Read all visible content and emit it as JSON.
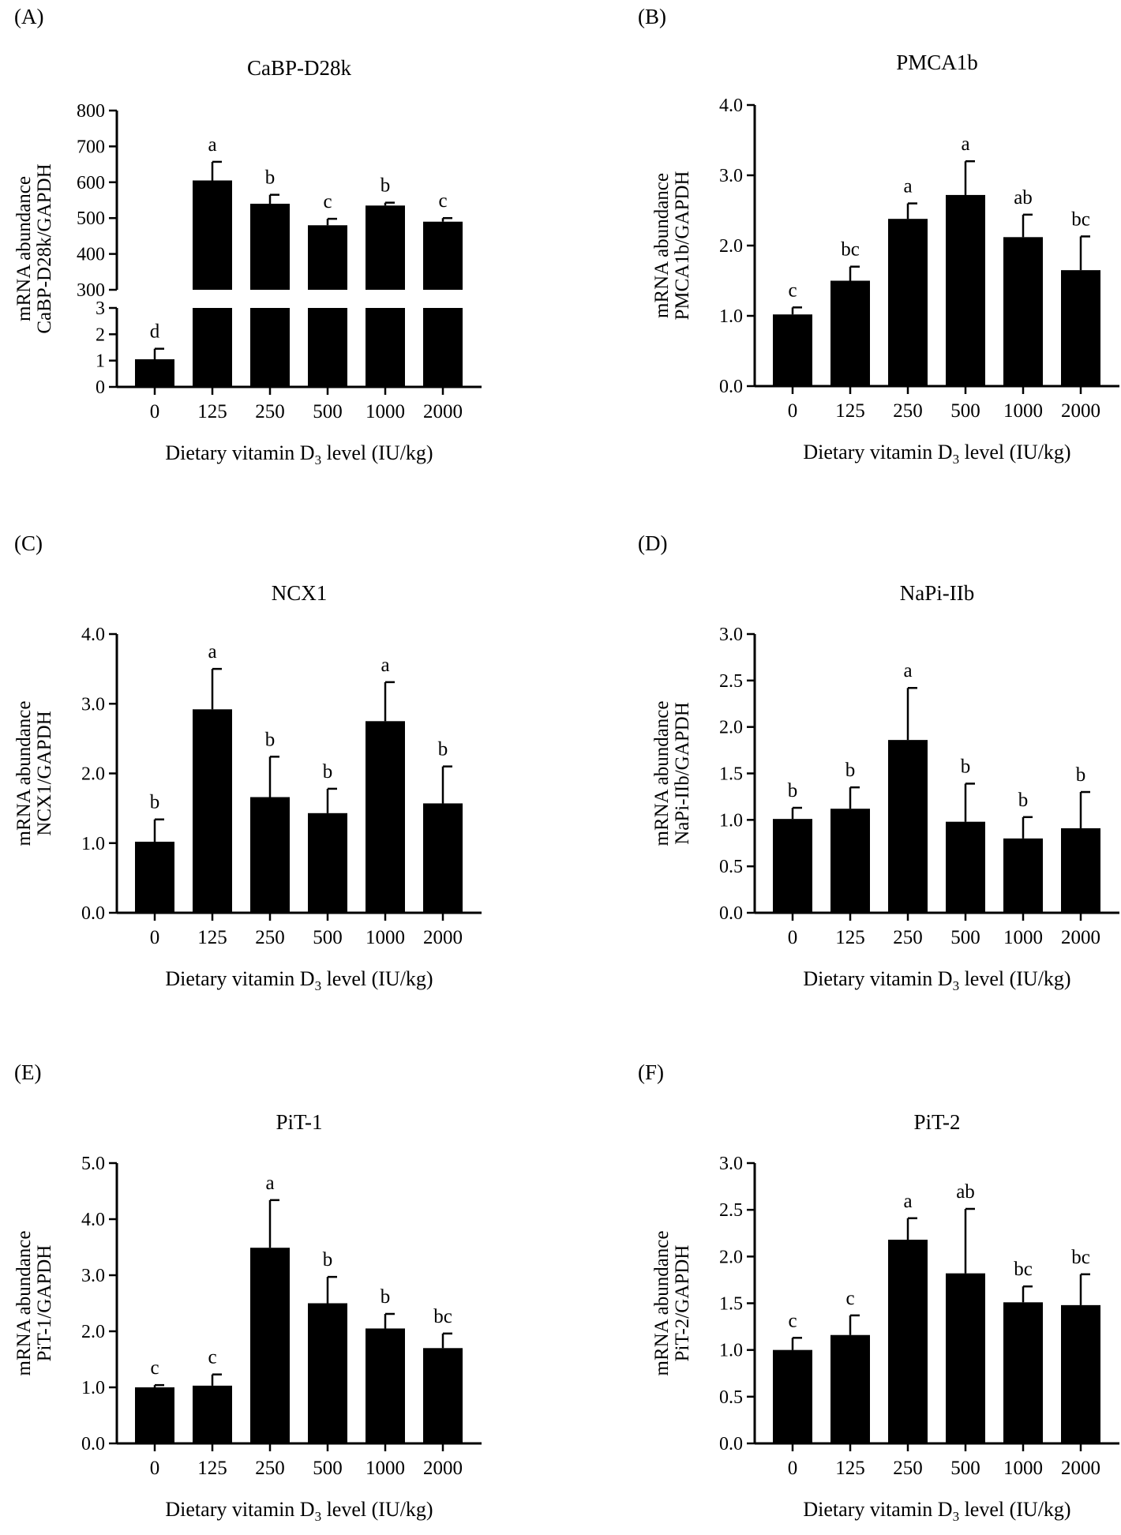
{
  "figure": {
    "categories": [
      "0",
      "125",
      "250",
      "500",
      "1000",
      "2000"
    ],
    "xlabel_pre": "Dietary vitamin D",
    "xlabel_sub": "3",
    "xlabel_post": " level (IU/kg)",
    "bar_color": "#000000"
  },
  "chart_data": [
    {
      "type": "bar",
      "panel_label": "(A)",
      "title": "CaBP-D28k",
      "ylabel_line1": "mRNA abundance",
      "ylabel_line2": "CaBP-D28k/GAPDH",
      "categories": [
        "0",
        "125",
        "250",
        "500",
        "1000",
        "2000"
      ],
      "values": [
        1.05,
        605,
        540,
        480,
        535,
        490
      ],
      "errors": [
        0.4,
        52,
        25,
        18,
        8,
        10
      ],
      "letters": [
        "d",
        "a",
        "b",
        "c",
        "b",
        "c"
      ],
      "broken_axis": true,
      "lower_ylim": [
        0,
        3
      ],
      "lower_ticks": [
        "0",
        "1",
        "2",
        "3"
      ],
      "upper_ylim": [
        300,
        800
      ],
      "upper_ticks": [
        "300",
        "400",
        "500",
        "600",
        "700",
        "800"
      ]
    },
    {
      "type": "bar",
      "panel_label": "(B)",
      "title": "PMCA1b",
      "ylabel_line1": "mRNA abundance",
      "ylabel_line2": "PMCA1b/GAPDH",
      "categories": [
        "0",
        "125",
        "250",
        "500",
        "1000",
        "2000"
      ],
      "values": [
        1.02,
        1.5,
        2.38,
        2.72,
        2.12,
        1.65
      ],
      "errors": [
        0.1,
        0.2,
        0.22,
        0.48,
        0.32,
        0.48
      ],
      "letters": [
        "c",
        "bc",
        "a",
        "a",
        "ab",
        "bc"
      ],
      "ylim": [
        0,
        4
      ],
      "ticks": [
        "0.0",
        "1.0",
        "2.0",
        "3.0",
        "4.0"
      ]
    },
    {
      "type": "bar",
      "panel_label": "(C)",
      "title": "NCX1",
      "ylabel_line1": "mRNA abundance",
      "ylabel_line2": "NCX1/GAPDH",
      "categories": [
        "0",
        "125",
        "250",
        "500",
        "1000",
        "2000"
      ],
      "values": [
        1.02,
        2.92,
        1.66,
        1.43,
        2.75,
        1.57
      ],
      "errors": [
        0.32,
        0.58,
        0.58,
        0.35,
        0.56,
        0.53
      ],
      "letters": [
        "b",
        "a",
        "b",
        "b",
        "a",
        "b"
      ],
      "ylim": [
        0,
        4
      ],
      "ticks": [
        "0.0",
        "1.0",
        "2.0",
        "3.0",
        "4.0"
      ]
    },
    {
      "type": "bar",
      "panel_label": "(D)",
      "title": "NaPi-IIb",
      "ylabel_line1": "mRNA abundance",
      "ylabel_line2": "NaPi-IIb/GAPDH",
      "categories": [
        "0",
        "125",
        "250",
        "500",
        "1000",
        "2000"
      ],
      "values": [
        1.01,
        1.12,
        1.86,
        0.98,
        0.8,
        0.91
      ],
      "errors": [
        0.12,
        0.23,
        0.56,
        0.41,
        0.23,
        0.39
      ],
      "letters": [
        "b",
        "b",
        "a",
        "b",
        "b",
        "b"
      ],
      "ylim": [
        0,
        3
      ],
      "ticks": [
        "0.0",
        "0.5",
        "1.0",
        "1.5",
        "2.0",
        "2.5",
        "3.0"
      ]
    },
    {
      "type": "bar",
      "panel_label": "(E)",
      "title": "PiT-1",
      "ylabel_line1": "mRNA abundance",
      "ylabel_line2": "PiT-1/GAPDH",
      "categories": [
        "0",
        "125",
        "250",
        "500",
        "1000",
        "2000"
      ],
      "values": [
        1.0,
        1.03,
        3.49,
        2.5,
        2.05,
        1.7
      ],
      "errors": [
        0.04,
        0.2,
        0.85,
        0.47,
        0.26,
        0.26
      ],
      "letters": [
        "c",
        "c",
        "a",
        "b",
        "b",
        "bc"
      ],
      "ylim": [
        0,
        5
      ],
      "ticks": [
        "0.0",
        "1.0",
        "2.0",
        "3.0",
        "4.0",
        "5.0"
      ]
    },
    {
      "type": "bar",
      "panel_label": "(F)",
      "title": "PiT-2",
      "ylabel_line1": "mRNA abundance",
      "ylabel_line2": "PiT-2/GAPDH",
      "categories": [
        "0",
        "125",
        "250",
        "500",
        "1000",
        "2000"
      ],
      "values": [
        1.0,
        1.16,
        2.18,
        1.82,
        1.51,
        1.48
      ],
      "errors": [
        0.13,
        0.21,
        0.23,
        0.69,
        0.17,
        0.33
      ],
      "letters": [
        "c",
        "c",
        "a",
        "ab",
        "bc",
        "bc"
      ],
      "ylim": [
        0,
        3
      ],
      "ticks": [
        "0.0",
        "0.5",
        "1.0",
        "1.5",
        "2.0",
        "2.5",
        "3.0"
      ]
    }
  ]
}
